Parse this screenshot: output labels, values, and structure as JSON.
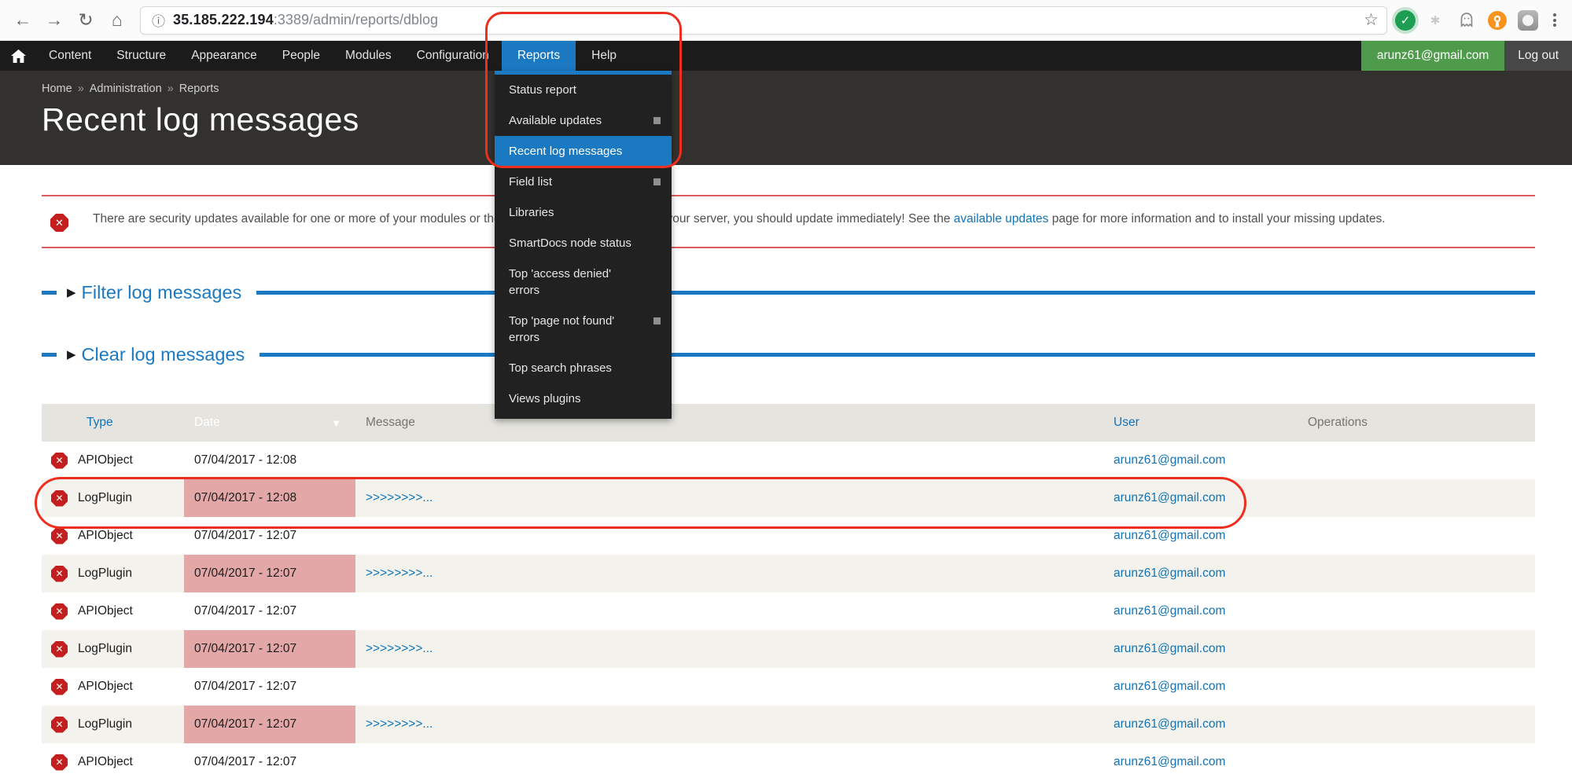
{
  "colors": {
    "accent": "#1b79c2",
    "link": "#1173b8"
  },
  "browser": {
    "url_host": "35.185.222.194",
    "url_rest": ":3389/admin/reports/dblog",
    "nav": {
      "back": "←",
      "forward": "→",
      "reload": "↻",
      "home": "⌂"
    }
  },
  "toolbar": {
    "items": [
      "Content",
      "Structure",
      "Appearance",
      "People",
      "Modules",
      "Configuration"
    ],
    "tabs": [
      {
        "label": "Reports",
        "active": true
      },
      {
        "label": "Help",
        "active": false
      }
    ],
    "user_email": "arunz61@gmail.com",
    "logout_label": "Log out"
  },
  "dropdown": {
    "items": [
      {
        "label": "Status report",
        "marker": false,
        "active": false
      },
      {
        "label": "Available updates",
        "marker": true,
        "active": false
      },
      {
        "label": "Recent log messages",
        "marker": false,
        "active": true
      },
      {
        "label": "Field list",
        "marker": true,
        "active": false
      },
      {
        "label": "Libraries",
        "marker": false,
        "active": false
      },
      {
        "label": "SmartDocs node status",
        "marker": false,
        "active": false
      },
      {
        "label": "Top 'access denied'\nerrors",
        "marker": false,
        "active": false
      },
      {
        "label": "Top 'page not found'\nerrors",
        "marker": true,
        "active": false
      },
      {
        "label": "Top search phrases",
        "marker": false,
        "active": false
      },
      {
        "label": "Views plugins",
        "marker": false,
        "active": false
      }
    ]
  },
  "breadcrumb": {
    "parts": [
      "Home",
      "Administration",
      "Reports"
    ],
    "separator": "»"
  },
  "page": {
    "title": "Recent log messages"
  },
  "alert": {
    "text_before": "There are security updates available for one or more of your modules or themes. To ensure the security of your server, you should update immediately! See the ",
    "link_text": "available updates",
    "text_after": " page for more information and to install your missing updates."
  },
  "fieldsets": [
    {
      "label": "Filter log messages"
    },
    {
      "label": "Clear log messages"
    }
  ],
  "table": {
    "headers": {
      "type": "Type",
      "date": "Date",
      "message": "Message",
      "user": "User",
      "operations": "Operations"
    },
    "sort_arrow": "▼",
    "rows": [
      {
        "type": "APIObject",
        "date": "07/04/2017 - 12:08",
        "message": "",
        "user": "arunz61@gmail.com",
        "shaded": false,
        "date_highlight": false
      },
      {
        "type": "LogPlugin",
        "date": "07/04/2017 - 12:08",
        "message": ">>>>>>>>...",
        "user": "arunz61@gmail.com",
        "shaded": true,
        "date_highlight": true
      },
      {
        "type": "APIObject",
        "date": "07/04/2017 - 12:07",
        "message": "",
        "user": "arunz61@gmail.com",
        "shaded": false,
        "date_highlight": false
      },
      {
        "type": "LogPlugin",
        "date": "07/04/2017 - 12:07",
        "message": ">>>>>>>>...",
        "user": "arunz61@gmail.com",
        "shaded": true,
        "date_highlight": true
      },
      {
        "type": "APIObject",
        "date": "07/04/2017 - 12:07",
        "message": "",
        "user": "arunz61@gmail.com",
        "shaded": false,
        "date_highlight": false
      },
      {
        "type": "LogPlugin",
        "date": "07/04/2017 - 12:07",
        "message": ">>>>>>>>...",
        "user": "arunz61@gmail.com",
        "shaded": true,
        "date_highlight": true
      },
      {
        "type": "APIObject",
        "date": "07/04/2017 - 12:07",
        "message": "",
        "user": "arunz61@gmail.com",
        "shaded": false,
        "date_highlight": false
      },
      {
        "type": "LogPlugin",
        "date": "07/04/2017 - 12:07",
        "message": ">>>>>>>>...",
        "user": "arunz61@gmail.com",
        "shaded": true,
        "date_highlight": true
      },
      {
        "type": "APIObject",
        "date": "07/04/2017 - 12:07",
        "message": "",
        "user": "arunz61@gmail.com",
        "shaded": false,
        "date_highlight": false
      }
    ]
  }
}
